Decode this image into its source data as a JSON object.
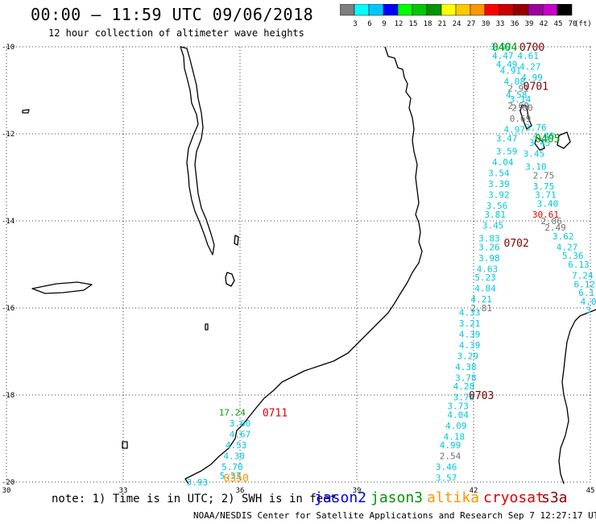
{
  "header": {
    "title": "00:00 – 11:59 UTC 09/06/2018",
    "subtitle": "12 hour collection of altimeter wave heights"
  },
  "color_scale": {
    "unit": "(ft)",
    "bins": [
      {
        "label": "3",
        "color": "#7f7f7f"
      },
      {
        "label": "6",
        "color": "#00ffff"
      },
      {
        "label": "9",
        "color": "#00c8ff"
      },
      {
        "label": "12",
        "color": "#0000ff"
      },
      {
        "label": "15",
        "color": "#00ff00"
      },
      {
        "label": "18",
        "color": "#00c800"
      },
      {
        "label": "21",
        "color": "#009600"
      },
      {
        "label": "24",
        "color": "#ffff00"
      },
      {
        "label": "27",
        "color": "#ffc800"
      },
      {
        "label": "30",
        "color": "#ff9600"
      },
      {
        "label": "33",
        "color": "#ff0000"
      },
      {
        "label": "36",
        "color": "#c80000"
      },
      {
        "label": "39",
        "color": "#960000"
      },
      {
        "label": "42",
        "color": "#a000a0"
      },
      {
        "label": "45",
        "color": "#c800c8"
      },
      {
        "label": "70",
        "color": "#000000"
      }
    ]
  },
  "map": {
    "lon_ticks": [
      "30",
      "33",
      "36",
      "39",
      "42",
      "45"
    ],
    "lat_ticks": [
      "-10",
      "-12",
      "-14",
      "-16",
      "-18",
      "-20"
    ],
    "colors": {
      "cyan": "#00c8e0",
      "gray": "#707070",
      "green": "#00a000",
      "dark_red": "#800000",
      "red": "#e00000",
      "orange": "#ff9600"
    },
    "track_labels": [
      {
        "text": "0404",
        "lon": 42.8,
        "lat": -10.0,
        "color": "green"
      },
      {
        "text": "0700",
        "lon": 43.5,
        "lat": -10.0,
        "color": "dark_red"
      },
      {
        "text": "0701",
        "lon": 43.6,
        "lat": -10.9,
        "color": "dark_red"
      },
      {
        "text": "0405",
        "lon": 43.9,
        "lat": -12.1,
        "color": "green"
      },
      {
        "text": "0702",
        "lon": 43.1,
        "lat": -14.5,
        "color": "dark_red"
      },
      {
        "text": "0703",
        "lon": 42.2,
        "lat": -18.0,
        "color": "dark_red"
      },
      {
        "text": "0711",
        "lon": 36.9,
        "lat": -18.4,
        "color": "red"
      },
      {
        "text": "0350",
        "lon": 35.9,
        "lat": -19.9,
        "color": "orange"
      }
    ],
    "tracks": [
      {
        "name": "track-0404-0700",
        "points": [
          {
            "lon": 42.7,
            "lat": -10.0,
            "value": "3.97",
            "color": "cyan"
          },
          {
            "lon": 42.75,
            "lat": -10.2,
            "value": "4.47",
            "color": "cyan"
          },
          {
            "lon": 43.4,
            "lat": -10.2,
            "value": "4.61",
            "color": "cyan"
          },
          {
            "lon": 42.85,
            "lat": -10.4,
            "value": "4.49",
            "color": "cyan"
          },
          {
            "lon": 43.45,
            "lat": -10.45,
            "value": "4.27",
            "color": "cyan"
          },
          {
            "lon": 42.95,
            "lat": -10.55,
            "value": "4.91",
            "color": "cyan"
          },
          {
            "lon": 43.5,
            "lat": -10.7,
            "value": "4.99",
            "color": "cyan"
          },
          {
            "lon": 43.05,
            "lat": -10.8,
            "value": "4.08",
            "color": "cyan"
          },
          {
            "lon": 43.15,
            "lat": -10.95,
            "value": "2.91",
            "color": "gray"
          },
          {
            "lon": 43.1,
            "lat": -11.1,
            "value": "4.58",
            "color": "cyan"
          },
          {
            "lon": 43.2,
            "lat": -11.2,
            "value": "3.14",
            "color": "cyan"
          },
          {
            "lon": 43.15,
            "lat": -11.35,
            "value": "2.60",
            "color": "gray"
          },
          {
            "lon": 43.25,
            "lat": -11.4,
            "value": "2.00",
            "color": "gray"
          },
          {
            "lon": 43.2,
            "lat": -11.65,
            "value": "0.69",
            "color": "gray"
          },
          {
            "lon": 43.6,
            "lat": -11.85,
            "value": "3.76",
            "color": "cyan"
          },
          {
            "lon": 43.05,
            "lat": -11.9,
            "value": "4.97",
            "color": "cyan"
          },
          {
            "lon": 43.8,
            "lat": -12.05,
            "value": "4.48",
            "color": "cyan"
          },
          {
            "lon": 42.85,
            "lat": -12.1,
            "value": "3.47",
            "color": "cyan"
          },
          {
            "lon": 43.7,
            "lat": -12.2,
            "value": "3.45",
            "color": "cyan"
          },
          {
            "lon": 42.85,
            "lat": -12.4,
            "value": "3.59",
            "color": "cyan"
          },
          {
            "lon": 43.55,
            "lat": -12.45,
            "value": "3.45",
            "color": "cyan"
          },
          {
            "lon": 42.75,
            "lat": -12.65,
            "value": "4.04",
            "color": "cyan"
          },
          {
            "lon": 43.6,
            "lat": -12.75,
            "value": "3.10",
            "color": "cyan"
          },
          {
            "lon": 42.65,
            "lat": -12.9,
            "value": "3.54",
            "color": "cyan"
          },
          {
            "lon": 43.8,
            "lat": -12.95,
            "value": "2.75",
            "color": "gray"
          },
          {
            "lon": 42.65,
            "lat": -13.15,
            "value": "3.39",
            "color": "cyan"
          },
          {
            "lon": 43.8,
            "lat": -13.2,
            "value": "3.75",
            "color": "cyan"
          },
          {
            "lon": 42.65,
            "lat": -13.4,
            "value": "3.92",
            "color": "cyan"
          },
          {
            "lon": 43.85,
            "lat": -13.4,
            "value": "3.71",
            "color": "cyan"
          },
          {
            "lon": 42.6,
            "lat": -13.65,
            "value": "3.56",
            "color": "cyan"
          },
          {
            "lon": 43.9,
            "lat": -13.6,
            "value": "3.40",
            "color": "cyan"
          },
          {
            "lon": 43.85,
            "lat": -13.85,
            "value": "30.61",
            "color": "red"
          },
          {
            "lon": 42.55,
            "lat": -13.85,
            "value": "3.81",
            "color": "cyan"
          },
          {
            "lon": 44.0,
            "lat": -14.0,
            "value": "2.06",
            "color": "gray"
          },
          {
            "lon": 42.5,
            "lat": -14.1,
            "value": "3.45",
            "color": "cyan"
          },
          {
            "lon": 44.1,
            "lat": -14.15,
            "value": "2.49",
            "color": "gray"
          },
          {
            "lon": 42.4,
            "lat": -14.4,
            "value": "3.83",
            "color": "cyan"
          },
          {
            "lon": 44.3,
            "lat": -14.35,
            "value": "3.62",
            "color": "cyan"
          },
          {
            "lon": 42.4,
            "lat": -14.6,
            "value": "3.26",
            "color": "cyan"
          },
          {
            "lon": 44.4,
            "lat": -14.6,
            "value": "4.27",
            "color": "cyan"
          },
          {
            "lon": 42.4,
            "lat": -14.85,
            "value": "3.98",
            "color": "cyan"
          },
          {
            "lon": 44.55,
            "lat": -14.8,
            "value": "5.36",
            "color": "cyan"
          },
          {
            "lon": 44.7,
            "lat": -15.0,
            "value": "6.13",
            "color": "cyan"
          },
          {
            "lon": 42.35,
            "lat": -15.1,
            "value": "4.63",
            "color": "cyan"
          },
          {
            "lon": 44.8,
            "lat": -15.25,
            "value": "7.24",
            "color": "cyan"
          },
          {
            "lon": 42.3,
            "lat": -15.3,
            "value": "5.23",
            "color": "cyan"
          },
          {
            "lon": 44.85,
            "lat": -15.45,
            "value": "6.12",
            "color": "cyan"
          },
          {
            "lon": 42.3,
            "lat": -15.55,
            "value": "4.84",
            "color": "cyan"
          },
          {
            "lon": 44.9,
            "lat": -15.65,
            "value": "6.1",
            "color": "cyan"
          },
          {
            "lon": 42.2,
            "lat": -15.8,
            "value": "4.21",
            "color": "cyan"
          },
          {
            "lon": 44.95,
            "lat": -15.85,
            "value": "4.0",
            "color": "cyan"
          },
          {
            "lon": 42.2,
            "lat": -16.0,
            "value": "2.81",
            "color": "gray"
          },
          {
            "lon": 44.95,
            "lat": -16.05,
            "value": "3",
            "color": "cyan"
          },
          {
            "lon": 41.9,
            "lat": -16.1,
            "value": "4.33",
            "color": "cyan"
          },
          {
            "lon": 41.9,
            "lat": -16.35,
            "value": "3.21",
            "color": "cyan"
          },
          {
            "lon": 41.9,
            "lat": -16.6,
            "value": "4.39",
            "color": "cyan"
          },
          {
            "lon": 41.9,
            "lat": -16.85,
            "value": "4.39",
            "color": "cyan"
          },
          {
            "lon": 41.85,
            "lat": -17.1,
            "value": "3.29",
            "color": "cyan"
          },
          {
            "lon": 41.8,
            "lat": -17.35,
            "value": "4.38",
            "color": "cyan"
          },
          {
            "lon": 41.8,
            "lat": -17.6,
            "value": "3.78",
            "color": "cyan"
          },
          {
            "lon": 41.75,
            "lat": -17.8,
            "value": "4.28",
            "color": "cyan"
          },
          {
            "lon": 41.75,
            "lat": -18.05,
            "value": "3.78",
            "color": "cyan"
          },
          {
            "lon": 41.6,
            "lat": -18.25,
            "value": "3.73",
            "color": "cyan"
          },
          {
            "lon": 41.6,
            "lat": -18.45,
            "value": "4.04",
            "color": "cyan"
          },
          {
            "lon": 41.55,
            "lat": -18.7,
            "value": "4.09",
            "color": "cyan"
          },
          {
            "lon": 41.5,
            "lat": -18.95,
            "value": "4.18",
            "color": "cyan"
          },
          {
            "lon": 41.4,
            "lat": -19.15,
            "value": "4.99",
            "color": "cyan"
          },
          {
            "lon": 41.4,
            "lat": -19.4,
            "value": "2.54",
            "color": "gray"
          },
          {
            "lon": 41.3,
            "lat": -19.65,
            "value": "3.46",
            "color": "cyan"
          },
          {
            "lon": 41.3,
            "lat": -19.9,
            "value": "3.57",
            "color": "cyan"
          }
        ]
      },
      {
        "name": "track-0711",
        "points": [
          {
            "lon": 35.8,
            "lat": -18.4,
            "value": "17.24",
            "color": "green"
          },
          {
            "lon": 36.0,
            "lat": -18.65,
            "value": "3.60",
            "color": "cyan"
          },
          {
            "lon": 36.0,
            "lat": -18.9,
            "value": "4.67",
            "color": "cyan"
          },
          {
            "lon": 35.9,
            "lat": -19.15,
            "value": "4.53",
            "color": "cyan"
          },
          {
            "lon": 35.85,
            "lat": -19.4,
            "value": "4.30",
            "color": "cyan"
          },
          {
            "lon": 35.8,
            "lat": -19.65,
            "value": "5.70",
            "color": "cyan"
          },
          {
            "lon": 35.75,
            "lat": -19.85,
            "value": "5.33",
            "color": "cyan"
          },
          {
            "lon": 34.9,
            "lat": -20.0,
            "value": "3.93",
            "color": "cyan"
          }
        ]
      }
    ]
  },
  "note": "note: 1) Time is in UTC; 2) SWH is in feet",
  "satellites": [
    {
      "name": "jason2",
      "color": "#0000ff"
    },
    {
      "name": "jason3",
      "color": "#009600"
    },
    {
      "name": "altika",
      "color": "#ff9600"
    },
    {
      "name": "cryosat",
      "color": "#e00000"
    },
    {
      "name": "s3a",
      "color": "#960000"
    }
  ],
  "footer": "NOAA/NESDIS Center for Satellite Applications and Research   Sep  7 12:27:17 UTC 2018"
}
